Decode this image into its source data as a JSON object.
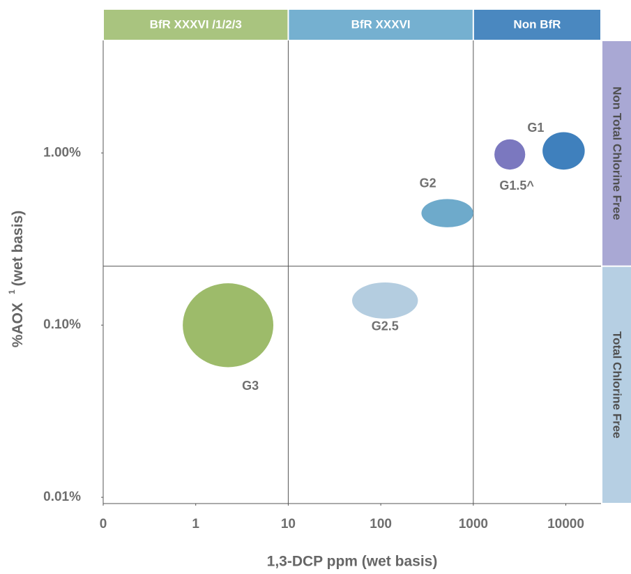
{
  "chart_data": {
    "type": "range-bubble",
    "xlabel": "1,3-DCP ppm (wet basis)",
    "ylabel": "%AOX",
    "ylabel_sup": "1",
    "ylabel_rest": "(wet basis)",
    "xscale": "symlog",
    "yscale": "log",
    "xlim": [
      0,
      24000
    ],
    "ylim": [
      0.0092,
      4.5
    ],
    "xticks": [
      0,
      1,
      10,
      100,
      1000,
      10000
    ],
    "yticks": [
      {
        "value": 0.01,
        "label": "0.01%"
      },
      {
        "value": 0.1,
        "label": "0.10%"
      },
      {
        "value": 1,
        "label": "1.00%"
      }
    ],
    "x_regions": {
      "labels": [
        "BfR XXXVI /1/2/3",
        "BfR XXXVI",
        "Non BfR"
      ],
      "colors": [
        "#a9c47f",
        "#75b0d0",
        "#4a88c0"
      ],
      "bounds": [
        10,
        1000
      ]
    },
    "y_regions": {
      "labels": [
        "Total Chlorine Free",
        "Non Total Chlorine Free"
      ],
      "colors": [
        "#b6cfe3",
        "#a9a8d4"
      ],
      "bounds": [
        0.22
      ]
    },
    "series": [
      {
        "name": "G1",
        "color": "#3f80bd",
        "x": [
          5600,
          16000
        ],
        "y": [
          0.8,
          1.32
        ]
      },
      {
        "name": "G1.5^",
        "color": "#7b78bf",
        "x": [
          1690,
          3640
        ],
        "y": [
          0.8,
          1.2
        ]
      },
      {
        "name": "G2",
        "color": "#6eaacb",
        "x": [
          275,
          1000
        ],
        "y": [
          0.37,
          0.54
        ]
      },
      {
        "name": "G2.5",
        "color": "#b4cde0",
        "x": [
          49,
          252
        ],
        "y": [
          0.109,
          0.177
        ]
      },
      {
        "name": "G3",
        "color": "#9dbb6a",
        "x": [
          0.86,
          6.9
        ],
        "y": [
          0.057,
          0.175
        ]
      }
    ]
  }
}
